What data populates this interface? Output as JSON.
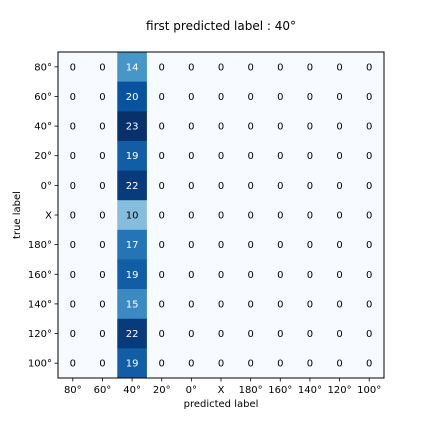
{
  "chart_data": {
    "type": "heatmap",
    "title": "first predicted label : 40°",
    "xlabel": "predicted label",
    "ylabel": "true label",
    "x_categories": [
      "80°",
      "60°",
      "40°",
      "20°",
      "0°",
      "X",
      "180°",
      "160°",
      "140°",
      "120°",
      "100°"
    ],
    "y_categories": [
      "80°",
      "60°",
      "40°",
      "20°",
      "0°",
      "X",
      "180°",
      "160°",
      "140°",
      "120°",
      "100°"
    ],
    "values": [
      [
        0,
        0,
        14,
        0,
        0,
        0,
        0,
        0,
        0,
        0,
        0
      ],
      [
        0,
        0,
        20,
        0,
        0,
        0,
        0,
        0,
        0,
        0,
        0
      ],
      [
        0,
        0,
        23,
        0,
        0,
        0,
        0,
        0,
        0,
        0,
        0
      ],
      [
        0,
        0,
        19,
        0,
        0,
        0,
        0,
        0,
        0,
        0,
        0
      ],
      [
        0,
        0,
        22,
        0,
        0,
        0,
        0,
        0,
        0,
        0,
        0
      ],
      [
        0,
        0,
        10,
        0,
        0,
        0,
        0,
        0,
        0,
        0,
        0
      ],
      [
        0,
        0,
        17,
        0,
        0,
        0,
        0,
        0,
        0,
        0,
        0
      ],
      [
        0,
        0,
        19,
        0,
        0,
        0,
        0,
        0,
        0,
        0,
        0
      ],
      [
        0,
        0,
        15,
        0,
        0,
        0,
        0,
        0,
        0,
        0,
        0
      ],
      [
        0,
        0,
        22,
        0,
        0,
        0,
        0,
        0,
        0,
        0,
        0
      ],
      [
        0,
        0,
        19,
        0,
        0,
        0,
        0,
        0,
        0,
        0,
        0
      ]
    ],
    "colormap": "Blues",
    "color_low": "#f7fbff",
    "color_high": "#08306b",
    "grid": false,
    "legend": "none"
  }
}
